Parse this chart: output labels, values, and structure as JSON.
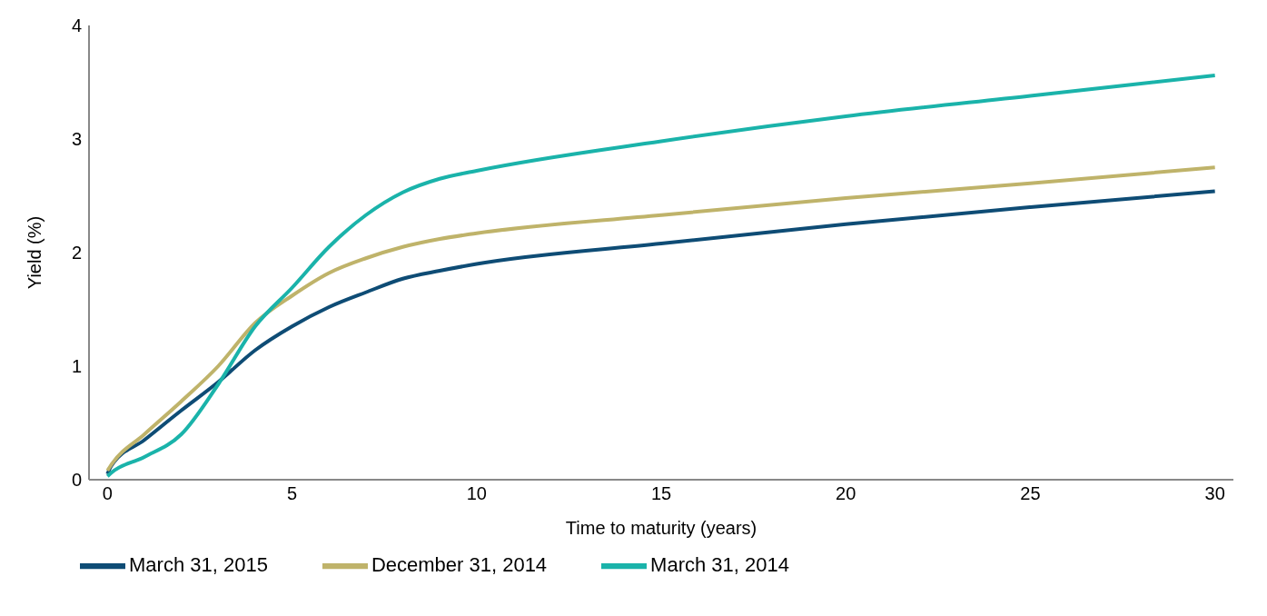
{
  "chart_data": {
    "type": "line",
    "xlabel": "Time to maturity (years)",
    "ylabel": "Yield (%)",
    "x": [
      0,
      0.1,
      1,
      2,
      3,
      4,
      5,
      6,
      7,
      8,
      9,
      10,
      15,
      20,
      25,
      30
    ],
    "series": [
      {
        "name": "March 31, 2015",
        "color": "#0e4c75",
        "values": [
          0.05,
          0.12,
          0.35,
          0.61,
          0.86,
          1.14,
          1.35,
          1.52,
          1.65,
          1.77,
          1.84,
          1.9,
          2.08,
          2.25,
          2.4,
          2.54
        ]
      },
      {
        "name": "December 31, 2014",
        "color": "#bfb36a",
        "values": [
          0.08,
          0.13,
          0.4,
          0.69,
          1.0,
          1.38,
          1.62,
          1.82,
          1.95,
          2.05,
          2.12,
          2.17,
          2.33,
          2.48,
          2.61,
          2.75
        ]
      },
      {
        "name": "March 31, 2014",
        "color": "#1ab3aa",
        "values": [
          0.03,
          0.06,
          0.2,
          0.4,
          0.84,
          1.35,
          1.69,
          2.05,
          2.33,
          2.53,
          2.65,
          2.72,
          2.98,
          3.2,
          3.38,
          3.56
        ]
      }
    ],
    "xlim": [
      -0.5,
      30.5
    ],
    "xticks": [
      0,
      5,
      10,
      15,
      20,
      25,
      30
    ],
    "ylim": [
      0,
      4
    ],
    "yticks": [
      0,
      1,
      2,
      3,
      4
    ],
    "grid": false,
    "legend": "bottom",
    "marker": "none",
    "line_style": "solid"
  }
}
